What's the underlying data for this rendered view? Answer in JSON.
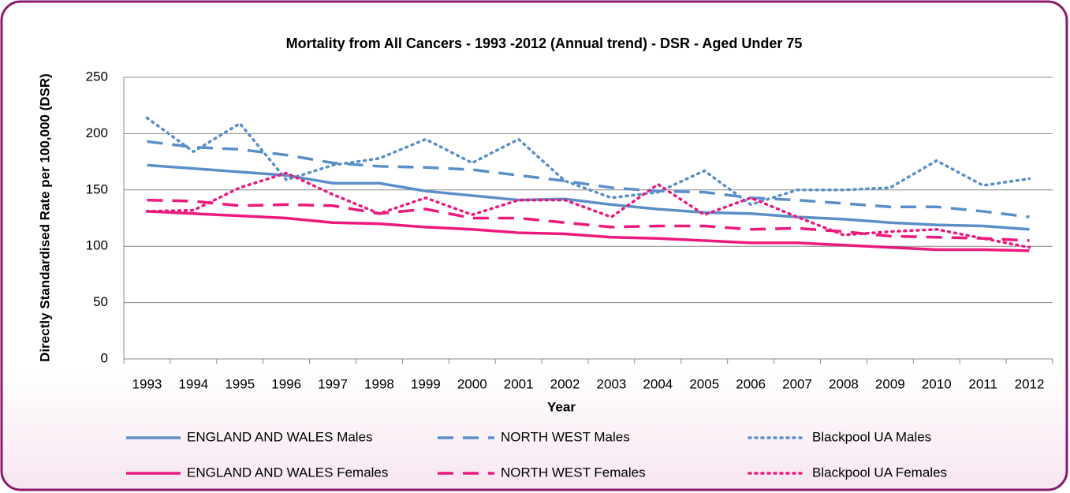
{
  "chart_data": {
    "type": "line",
    "title": "Mortality from All Cancers - 1993 -2012 (Annual trend) - DSR - Aged Under 75",
    "x_label": "Year",
    "y_label": "Directly Standardised Rate per 100,000 (DSR)",
    "categories": [
      "1993",
      "1994",
      "1995",
      "1996",
      "1997",
      "1998",
      "1999",
      "2000",
      "2001",
      "2002",
      "2003",
      "2004",
      "2005",
      "2006",
      "2007",
      "2008",
      "2009",
      "2010",
      "2011",
      "2012"
    ],
    "ylim": [
      0,
      250
    ],
    "yticks": [
      0,
      50,
      100,
      150,
      200,
      250
    ],
    "grid": true,
    "legend": "bottom",
    "series": [
      {
        "name": "ENGLAND AND WALES Males",
        "color": "#5b8fc9",
        "style": "solid",
        "values": [
          172,
          169,
          166,
          163,
          156,
          156,
          149,
          145,
          141,
          142,
          137,
          133,
          130,
          129,
          126,
          124,
          121,
          119,
          118,
          115
        ]
      },
      {
        "name": "NORTH WEST Males",
        "color": "#5b8fc9",
        "style": "dashed",
        "values": [
          193,
          188,
          186,
          181,
          174,
          171,
          170,
          168,
          163,
          158,
          152,
          149,
          148,
          143,
          141,
          138,
          135,
          135,
          131,
          126
        ]
      },
      {
        "name": "Blackpool UA Males",
        "color": "#5b8fc9",
        "style": "dotted",
        "values": [
          214,
          184,
          209,
          159,
          172,
          178,
          195,
          174,
          195,
          158,
          143,
          148,
          167,
          137,
          150,
          150,
          152,
          176,
          154,
          160
        ]
      },
      {
        "name": "ENGLAND AND WALES Females",
        "color": "#ec1a7c",
        "style": "solid",
        "values": [
          131,
          129,
          127,
          125,
          121,
          120,
          117,
          115,
          112,
          111,
          108,
          107,
          105,
          103,
          103,
          101,
          99,
          97,
          97,
          96
        ]
      },
      {
        "name": "NORTH WEST Females",
        "color": "#ec1a7c",
        "style": "dashed",
        "values": [
          141,
          140,
          136,
          137,
          136,
          129,
          133,
          125,
          125,
          121,
          117,
          118,
          118,
          115,
          116,
          113,
          109,
          108,
          107,
          105
        ]
      },
      {
        "name": "Blackpool UA Females",
        "color": "#ec1a7c",
        "style": "dotted",
        "values": [
          131,
          132,
          152,
          165,
          146,
          129,
          143,
          128,
          141,
          141,
          126,
          155,
          128,
          143,
          126,
          110,
          113,
          115,
          107,
          99
        ]
      }
    ]
  }
}
